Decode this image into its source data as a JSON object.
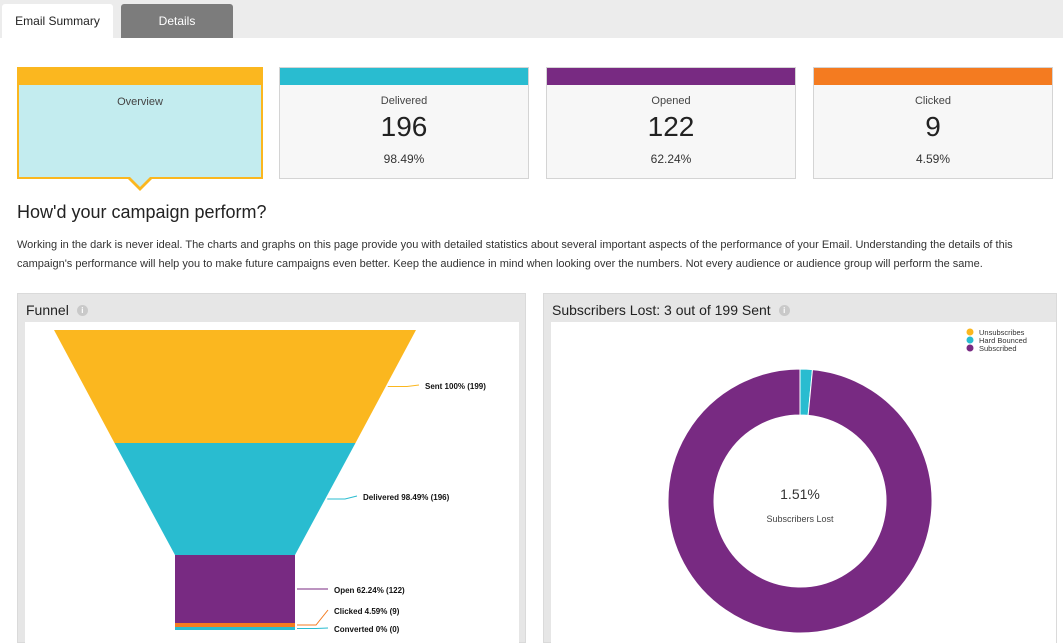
{
  "tabs": [
    {
      "label": "Email Summary",
      "active": true
    },
    {
      "label": "Details",
      "active": false
    }
  ],
  "cards": {
    "overview": {
      "label": "Overview",
      "color": "#fbb71f"
    },
    "delivered": {
      "label": "Delivered",
      "value": "196",
      "percent": "98.49%",
      "color": "#29bcd0"
    },
    "opened": {
      "label": "Opened",
      "value": "122",
      "percent": "62.24%",
      "color": "#782a82"
    },
    "clicked": {
      "label": "Clicked",
      "value": "9",
      "percent": "4.59%",
      "color": "#f47b20"
    }
  },
  "heading": "How'd your campaign perform?",
  "description": "Working in the dark is never ideal. The charts and graphs on this page provide you with detailed statistics about several important aspects of the performance of your Email. Understanding the details of this campaign's performance will help you to make future campaigns even better. Keep the audience in mind when looking over the numbers. Not every audience or audience group will perform the same.",
  "funnel_panel": {
    "title": "Funnel",
    "info_icon": "info-icon"
  },
  "subscribers_panel": {
    "title": "Subscribers Lost: 3 out of 199 Sent",
    "info_icon": "info-icon"
  },
  "chart_data": [
    {
      "type": "funnel",
      "title": "Funnel",
      "stages": [
        {
          "label": "Sent 100% (199)",
          "percent": 100,
          "count": 199,
          "color": "#fbb71f"
        },
        {
          "label": "Delivered 98.49% (196)",
          "percent": 98.49,
          "count": 196,
          "color": "#29bcd0"
        },
        {
          "label": "Open 62.24% (122)",
          "percent": 62.24,
          "count": 122,
          "color": "#782a82"
        },
        {
          "label": "Clicked 4.59% (9)",
          "percent": 4.59,
          "count": 9,
          "color": "#f47b20"
        },
        {
          "label": "Converted 0% (0)",
          "percent": 0,
          "count": 0,
          "color": "#29bcd0"
        }
      ]
    },
    {
      "type": "pie",
      "title": "Subscribers Lost: 3 out of 199 Sent",
      "center_value": "1.51%",
      "center_label": "Subscribers Lost",
      "legend": [
        "Unsubscribes",
        "Hard Bounced",
        "Subscribed"
      ],
      "legend_position": "top-right",
      "slices": [
        {
          "name": "Unsubscribes",
          "value": 0,
          "color": "#fbb71f"
        },
        {
          "name": "Hard Bounced",
          "value": 3,
          "color": "#29bcd0"
        },
        {
          "name": "Subscribed",
          "value": 196,
          "color": "#782a82"
        }
      ]
    }
  ]
}
